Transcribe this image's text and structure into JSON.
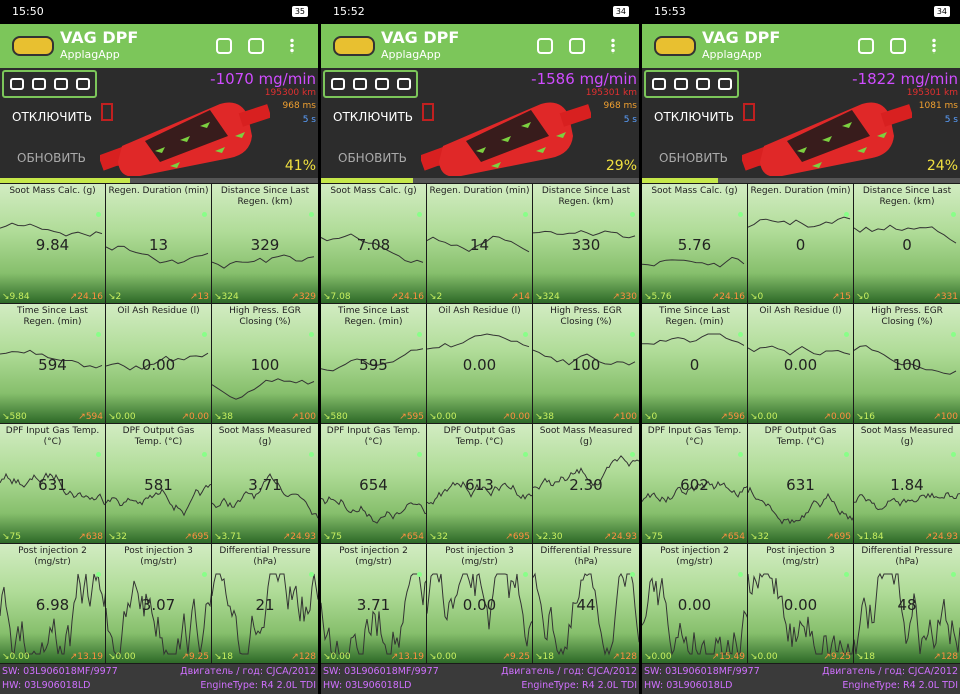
{
  "app": {
    "title": "VAG DPF",
    "subtitle": "ApplagApp"
  },
  "buttons": {
    "disconnect": "ОТКЛЮЧИТЬ",
    "refresh": "ОБНОВИТЬ"
  },
  "tile_labels": [
    "Soot Mass Calc. (g)",
    "Regen. Duration (min)",
    "Distance Since Last Regen. (km)",
    "Time Since Last Regen. (min)",
    "Oil Ash Residue (l)",
    "High Press. EGR Closing (%)",
    "DPF Input Gas Temp. (°C)",
    "DPF Output Gas Temp. (°C)",
    "Soot Mass Measured (g)",
    "Post injection 2 (mg/str)",
    "Post injection 3 (mg/str)",
    "Differential Pressure (hPa)"
  ],
  "footer": {
    "sw": "SW: 03L906018MF/9977",
    "engine": "Двигатель / год: CJCA/2012",
    "hw": "HW: 03L906018LD",
    "engine_type": "EngineType: R4 2.0L TDI"
  },
  "panels": [
    {
      "time": "15:50",
      "battery": "35",
      "flow": "-1070 mg/min",
      "km": "195300 km",
      "ms": "968 ms",
      "s": "5 s",
      "percent": "41%",
      "tiles": [
        [
          "9.84",
          "9.84",
          "24.16"
        ],
        [
          "13",
          "2",
          "13"
        ],
        [
          "329",
          "324",
          "329"
        ],
        [
          "594",
          "580",
          "594"
        ],
        [
          "0.00",
          "0.00",
          "0.00"
        ],
        [
          "100",
          "38",
          "100"
        ],
        [
          "631",
          "75",
          "638"
        ],
        [
          "581",
          "32",
          "695"
        ],
        [
          "3.71",
          "3.71",
          "24.93"
        ],
        [
          "6.98",
          "0.00",
          "13.19"
        ],
        [
          "3.07",
          "0.00",
          "9.25"
        ],
        [
          "21",
          "18",
          "128"
        ]
      ]
    },
    {
      "time": "15:52",
      "battery": "34",
      "flow": "-1586 mg/min",
      "km": "195301 km",
      "ms": "968 ms",
      "s": "5 s",
      "percent": "29%",
      "tiles": [
        [
          "7.08",
          "7.08",
          "24.16"
        ],
        [
          "14",
          "2",
          "14"
        ],
        [
          "330",
          "324",
          "330"
        ],
        [
          "595",
          "580",
          "595"
        ],
        [
          "0.00",
          "0.00",
          "0.00"
        ],
        [
          "100",
          "38",
          "100"
        ],
        [
          "654",
          "75",
          "654"
        ],
        [
          "613",
          "32",
          "695"
        ],
        [
          "2.30",
          "2.30",
          "24.93"
        ],
        [
          "3.71",
          "0.00",
          "13.19"
        ],
        [
          "0.00",
          "0.00",
          "9.25"
        ],
        [
          "44",
          "18",
          "128"
        ]
      ]
    },
    {
      "time": "15:53",
      "battery": "34",
      "flow": "-1822 mg/min",
      "km": "195301 km",
      "ms": "1081 ms",
      "s": "5 s",
      "percent": "24%",
      "tiles": [
        [
          "5.76",
          "5.76",
          "24.16"
        ],
        [
          "0",
          "0",
          "15"
        ],
        [
          "0",
          "0",
          "331"
        ],
        [
          "0",
          "0",
          "596"
        ],
        [
          "0.00",
          "0.00",
          "0.00"
        ],
        [
          "100",
          "16",
          "100"
        ],
        [
          "602",
          "75",
          "654"
        ],
        [
          "631",
          "32",
          "695"
        ],
        [
          "1.84",
          "1.84",
          "24.93"
        ],
        [
          "0.00",
          "0.00",
          "15.49"
        ],
        [
          "0.00",
          "0.00",
          "9.25"
        ],
        [
          "48",
          "18",
          "128"
        ]
      ]
    }
  ]
}
